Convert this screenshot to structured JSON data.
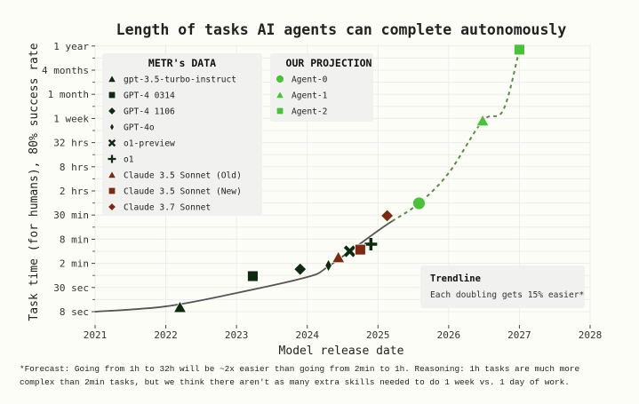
{
  "chart_data": {
    "type": "scatter",
    "title": "Length of tasks AI agents can complete autonomously",
    "xlabel": "Model release date",
    "ylabel": "Task time (for humans), 80% success rate",
    "xlim": [
      2021,
      2028
    ],
    "x_ticks": [
      "2021",
      "2022",
      "2023",
      "2024",
      "2025",
      "2026",
      "2027",
      "2028"
    ],
    "y_scale": "log",
    "y_unit": "minutes",
    "y_ticks": [
      {
        "label": "8 sec",
        "minutes": 0.1333
      },
      {
        "label": "30 sec",
        "minutes": 0.5
      },
      {
        "label": "2 min",
        "minutes": 2
      },
      {
        "label": "8 min",
        "minutes": 8
      },
      {
        "label": "30 min",
        "minutes": 30
      },
      {
        "label": "2 hrs",
        "minutes": 120
      },
      {
        "label": "8 hrs",
        "minutes": 480
      },
      {
        "label": "32 hrs",
        "minutes": 1920
      },
      {
        "label": "1 week",
        "minutes": 10080
      },
      {
        "label": "1 month",
        "minutes": 43200
      },
      {
        "label": "4 months",
        "minutes": 172800
      },
      {
        "label": "1 year",
        "minutes": 525600
      }
    ],
    "grid": true,
    "legends": [
      {
        "title": "METR's DATA",
        "placement": "top-left"
      },
      {
        "title": "OUR PROJECTION",
        "placement": "top-center"
      }
    ],
    "series": [
      {
        "name": "gpt-3.5-turbo-instruct",
        "group": "metr",
        "marker": "triangle",
        "color": "#102a12",
        "x": 2022.2,
        "y": 0.168
      },
      {
        "name": "GPT-4 0314",
        "group": "metr",
        "marker": "square",
        "color": "#102a12",
        "x": 2023.23,
        "y": 0.96
      },
      {
        "name": "GPT-4 1106",
        "group": "metr",
        "marker": "diamond",
        "color": "#102a12",
        "x": 2023.9,
        "y": 1.43
      },
      {
        "name": "GPT-4o",
        "group": "metr",
        "marker": "thin-diamond",
        "color": "#102a12",
        "x": 2024.3,
        "y": 1.77
      },
      {
        "name": "o1-preview",
        "group": "metr",
        "marker": "x",
        "color": "#102a12",
        "x": 2024.6,
        "y": 4.0
      },
      {
        "name": "o1",
        "group": "metr",
        "marker": "plus",
        "color": "#102a12",
        "x": 2024.9,
        "y": 6.0
      },
      {
        "name": "Claude 3.5 Sonnet (Old)",
        "group": "metr",
        "marker": "triangle",
        "color": "#7b2a13",
        "x": 2024.44,
        "y": 2.78
      },
      {
        "name": "Claude 3.5 Sonnet (New)",
        "group": "metr",
        "marker": "square",
        "color": "#7b2a13",
        "x": 2024.75,
        "y": 4.4
      },
      {
        "name": "Claude 3.7 Sonnet",
        "group": "metr",
        "marker": "diamond",
        "color": "#7b2a13",
        "x": 2025.13,
        "y": 28.9
      },
      {
        "name": "Agent-0",
        "group": "projection",
        "marker": "circle",
        "color": "#4cbf3d",
        "x": 2025.58,
        "y": 59
      },
      {
        "name": "Agent-1",
        "group": "projection",
        "marker": "triangle",
        "color": "#4cbf3d",
        "x": 2026.48,
        "y": 8500
      },
      {
        "name": "Agent-2",
        "group": "projection",
        "marker": "square",
        "color": "#4cbf3d",
        "x": 2027.0,
        "y": 444000
      }
    ],
    "trendline": {
      "solid": [
        [
          2021,
          0.133
        ],
        [
          2022,
          0.178
        ],
        [
          2023,
          0.37
        ],
        [
          2024,
          0.91
        ],
        [
          2024.3,
          1.68
        ],
        [
          2025,
          12.7
        ],
        [
          2025.2,
          21.5
        ]
      ],
      "dashed": [
        [
          2025.2,
          21.5
        ],
        [
          2025.58,
          59
        ],
        [
          2026,
          335
        ],
        [
          2026.48,
          8500
        ],
        [
          2026.77,
          16500
        ],
        [
          2027,
          444000
        ]
      ],
      "solid_color": "#555555",
      "dashed_color": "#5a8a4a"
    },
    "annotation": {
      "title": "Trendline",
      "text": "Each doubling gets 15% easier*"
    }
  },
  "footnote": [
    "*Forecast: Going from 1h to 32h will be ~2x easier than going from 2min to 1h. Reasoning: 1h tasks are much more",
    "complex than 2min tasks, but we think there aren't as many extra skills needed to do 1 week vs. 1 day of work."
  ]
}
